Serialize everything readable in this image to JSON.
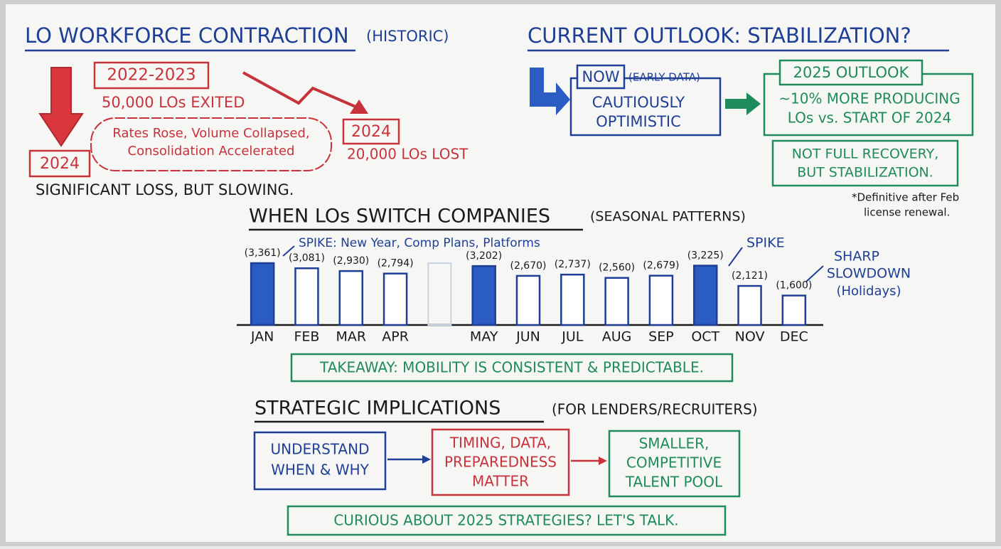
{
  "left_panel": {
    "title": "LO WORKFORCE CONTRACTION",
    "title_note": "(HISTORIC)",
    "period": "2022-2023",
    "exited": "50,000 LOs EXITED",
    "causes": [
      "Rates Rose, Volume Collapsed,",
      "Consolidation Accelerated"
    ],
    "year_a": "2024",
    "year_b": "2024",
    "lost": "20,000 LOs LOST",
    "summary": "SIGNIFICANT LOSS, BUT SLOWING."
  },
  "right_panel": {
    "title": "CURRENT OUTLOOK: STABILIZATION?",
    "now": "NOW",
    "now_note": "(EARLY DATA)",
    "now_text": [
      "CAUTIOUSLY",
      "OPTIMISTIC"
    ],
    "outlook_title": "2025 OUTLOOK",
    "outlook_text": [
      "~10% MORE PRODUCING",
      "LOs vs. START OF 2024"
    ],
    "outlook_note": [
      "NOT FULL RECOVERY,",
      "BUT STABILIZATION."
    ],
    "footnote": [
      "*Definitive after Feb",
      "license renewal."
    ]
  },
  "chart_data": {
    "type": "bar",
    "title": "WHEN LOs SWITCH COMPANIES",
    "subtitle": "(SEASONAL PATTERNS)",
    "categories": [
      "JAN",
      "FEB",
      "MAR",
      "APR",
      null,
      "MAY",
      "JUN",
      "JUL",
      "AUG",
      "SEP",
      "OCT",
      "NOV",
      "DEC"
    ],
    "values": [
      3361,
      3081,
      2930,
      2794,
      null,
      3202,
      2670,
      2737,
      2560,
      2679,
      3225,
      2121,
      1600
    ],
    "value_labels": [
      "(3,361)",
      "(3,081)",
      "(2,930)",
      "(2,794)",
      null,
      "(3,202)",
      "(2,670)",
      "(2,737)",
      "(2,560)",
      "(2,679)",
      "(3,225)",
      "(2,121)",
      "(1,600)"
    ],
    "colors": [
      "#2a5cc4",
      "#ffffff",
      "#ffffff",
      "#ffffff",
      "#ffffff",
      "#2a5cc4",
      "#ffffff",
      "#ffffff",
      "#ffffff",
      "#ffffff",
      "#2a5cc4",
      "#ffffff",
      "#ffffff"
    ],
    "stroke_color": "#1f3f96",
    "annotations": {
      "spike_1": "SPIKE: New Year, Comp Plans, Platforms",
      "spike_2": "SPIKE",
      "slowdown": [
        "SHARP",
        "SLOWDOWN",
        "(Holidays)"
      ]
    },
    "takeaway": "TAKEAWAY: MOBILITY IS CONSISTENT & PREDICTABLE."
  },
  "implications": {
    "title": "STRATEGIC IMPLICATIONS",
    "title_note": "(FOR LENDERS/RECRUITERS)",
    "steps": [
      [
        "UNDERSTAND",
        "WHEN & WHY"
      ],
      [
        "TIMING, DATA,",
        "PREPAREDNESS",
        "MATTER"
      ],
      [
        "SMALLER,",
        "COMPETITIVE",
        "TALENT POOL"
      ]
    ],
    "cta": "CURIOUS ABOUT 2025 STRATEGIES? LET'S TALK."
  }
}
